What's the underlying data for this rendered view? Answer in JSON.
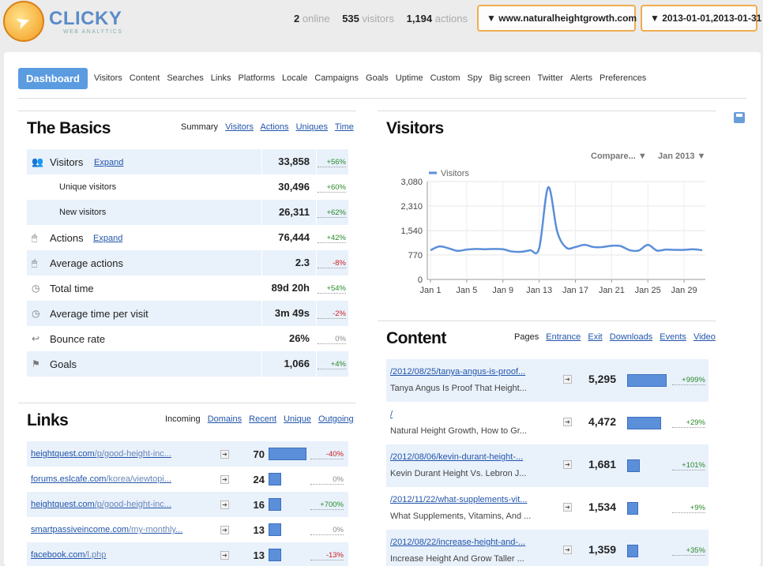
{
  "header": {
    "brand": "CLICKY",
    "brand_sub": "WEB ANALYTICS",
    "stats": [
      {
        "value": "2",
        "label": "online"
      },
      {
        "value": "535",
        "label": "visitors"
      },
      {
        "value": "1,194",
        "label": "actions"
      }
    ],
    "site_selector": "▼ www.naturalheightgrowth.com",
    "date_selector": "▼ 2013-01-01,2013-01-31"
  },
  "nav": {
    "active": "Dashboard",
    "items": [
      "Visitors",
      "Content",
      "Searches",
      "Links",
      "Platforms",
      "Locale",
      "Campaigns",
      "Goals",
      "Uptime",
      "Custom",
      "Spy",
      "Big screen",
      "Twitter",
      "Alerts",
      "Preferences"
    ]
  },
  "basics": {
    "title": "The Basics",
    "tab_current": "Summary",
    "tabs": [
      "Visitors",
      "Actions",
      "Uniques",
      "Time"
    ],
    "expand_label": "Expand",
    "rows": [
      {
        "label": "Visitors",
        "value": "33,858",
        "change": "+56%",
        "trend": "pos",
        "icon": "visitors-icon",
        "expand": true
      },
      {
        "label": "Unique visitors",
        "value": "30,496",
        "change": "+60%",
        "trend": "pos",
        "sub": true
      },
      {
        "label": "New visitors",
        "value": "26,311",
        "change": "+62%",
        "trend": "pos",
        "sub": true
      },
      {
        "label": "Actions",
        "value": "76,444",
        "change": "+42%",
        "trend": "pos",
        "icon": "mouse-icon",
        "expand": true
      },
      {
        "label": "Average actions",
        "value": "2.3",
        "change": "-8%",
        "trend": "neg",
        "icon": "mouse-icon"
      },
      {
        "label": "Total time",
        "value": "89d 20h",
        "change": "+54%",
        "trend": "pos",
        "icon": "clock-icon"
      },
      {
        "label": "Average time per visit",
        "value": "3m 49s",
        "change": "-2%",
        "trend": "neg",
        "icon": "clock-icon"
      },
      {
        "label": "Bounce rate",
        "value": "26%",
        "change": "0%",
        "trend": "zero",
        "icon": "bounce-icon"
      },
      {
        "label": "Goals",
        "value": "1,066",
        "change": "+4%",
        "trend": "pos",
        "icon": "flag-icon"
      }
    ]
  },
  "links": {
    "title": "Links",
    "tab_current": "Incoming",
    "tabs": [
      "Domains",
      "Recent",
      "Unique",
      "Outgoing"
    ],
    "rows": [
      {
        "domain": "heightquest.com",
        "path": "/p/good-height-inc...",
        "value": 70,
        "change": "-40%",
        "trend": "neg"
      },
      {
        "domain": "forums.eslcafe.com",
        "path": "/korea/viewtopi...",
        "value": 24,
        "change": "0%",
        "trend": "zero"
      },
      {
        "domain": "heightquest.com",
        "path": "/p/good-height-inc...",
        "value": 16,
        "change": "+700%",
        "trend": "pos"
      },
      {
        "domain": "smartpassiveincome.com",
        "path": "/my-monthly...",
        "value": 13,
        "change": "0%",
        "trend": "zero"
      },
      {
        "domain": "facebook.com",
        "path": "/l.php",
        "value": 13,
        "change": "-13%",
        "trend": "neg"
      }
    ]
  },
  "visitors_chart": {
    "title": "Visitors",
    "compare_label": "Compare... ▼",
    "period_label": "Jan 2013 ▼",
    "chart_data": {
      "type": "line",
      "legend": "Visitors",
      "x_tick_labels": [
        "Jan 1",
        "Jan 5",
        "Jan 9",
        "Jan 13",
        "Jan 17",
        "Jan 21",
        "Jan 25",
        "Jan 29"
      ],
      "y_tick_labels": [
        "0",
        "770",
        "1,540",
        "2,310",
        "3,080"
      ],
      "ylim": [
        0,
        3080
      ],
      "series": [
        {
          "name": "Visitors",
          "x": [
            1,
            2,
            3,
            4,
            5,
            6,
            7,
            8,
            9,
            10,
            11,
            12,
            13,
            14,
            15,
            16,
            17,
            18,
            19,
            20,
            21,
            22,
            23,
            24,
            25,
            26,
            27,
            28,
            29,
            30,
            31
          ],
          "values": [
            920,
            1040,
            980,
            900,
            940,
            960,
            950,
            960,
            950,
            880,
            870,
            920,
            980,
            2900,
            1500,
            1000,
            1020,
            1090,
            1020,
            1020,
            1060,
            1050,
            920,
            910,
            1090,
            910,
            940,
            930,
            930,
            950,
            920
          ]
        }
      ],
      "color": "#5b8fd9",
      "grid": true
    }
  },
  "content": {
    "title": "Content",
    "tab_current": "Pages",
    "tabs": [
      "Entrance",
      "Exit",
      "Downloads",
      "Events",
      "Video"
    ],
    "rows": [
      {
        "path": "/2012/08/25/tanya-angus-is-proof...",
        "title": "Tanya Angus Is Proof That Height...",
        "value": "5,295",
        "bar": 1.0,
        "change": "+999%",
        "trend": "pos"
      },
      {
        "path": "/",
        "title": "Natural Height Growth, How to Gr...",
        "value": "4,472",
        "bar": 0.85,
        "change": "+29%",
        "trend": "pos"
      },
      {
        "path": "/2012/08/06/kevin-durant-height-...",
        "title": "Kevin Durant Height Vs. Lebron J...",
        "value": "1,681",
        "bar": 0.32,
        "change": "+101%",
        "trend": "pos"
      },
      {
        "path": "/2012/11/22/what-supplements-vit...",
        "title": "What Supplements, Vitamins, And ...",
        "value": "1,534",
        "bar": 0.29,
        "change": "+9%",
        "trend": "pos"
      },
      {
        "path": "/2012/08/22/increase-height-and-...",
        "title": "Increase Height And Grow Taller ...",
        "value": "1,359",
        "bar": 0.26,
        "change": "+35%",
        "trend": "pos"
      }
    ]
  }
}
